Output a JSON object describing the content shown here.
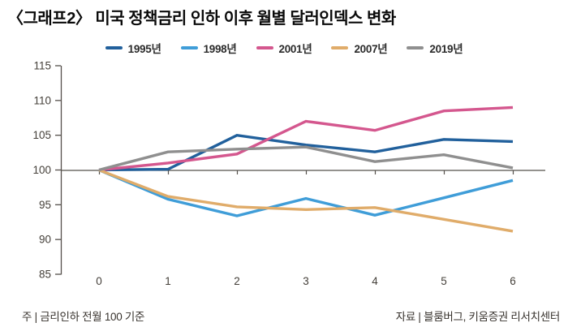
{
  "title": "〈그래프2〉 미국 정책금리 인하 이후 월별 달러인덱스 변화",
  "footer": {
    "note": "주 | 금리인하 전월 100 기준",
    "source": "자료 | 블룸버그, 키움증권 리서치센터"
  },
  "colors": {
    "axis": "#55504b",
    "tick_label": "#45403a"
  },
  "chart_data": {
    "type": "line",
    "x": [
      0,
      1,
      2,
      3,
      4,
      5,
      6
    ],
    "xticks": [
      "0",
      "1",
      "2",
      "3",
      "4",
      "5",
      "6"
    ],
    "yticks": [
      85,
      90,
      95,
      100,
      105,
      110,
      115
    ],
    "ylim": [
      85,
      115
    ],
    "baseline": 100,
    "grid": false,
    "legend_position": "top-center",
    "series": [
      {
        "name": "1995년",
        "color": "#21609c",
        "values": [
          100,
          100.1,
          105.0,
          103.6,
          102.6,
          104.4,
          104.1
        ]
      },
      {
        "name": "1998년",
        "color": "#3f9dd8",
        "values": [
          100,
          95.8,
          93.4,
          95.9,
          93.5,
          96.0,
          98.5
        ]
      },
      {
        "name": "2001년",
        "color": "#d4578e",
        "values": [
          100,
          101.0,
          102.3,
          107.0,
          105.7,
          108.5,
          109.0
        ]
      },
      {
        "name": "2007년",
        "color": "#e0ac6a",
        "values": [
          100,
          96.2,
          94.7,
          94.3,
          94.6,
          92.9,
          91.2
        ]
      },
      {
        "name": "2019년",
        "color": "#8f8f8f",
        "values": [
          100,
          102.6,
          103.0,
          103.3,
          101.2,
          102.2,
          100.3
        ]
      }
    ]
  }
}
